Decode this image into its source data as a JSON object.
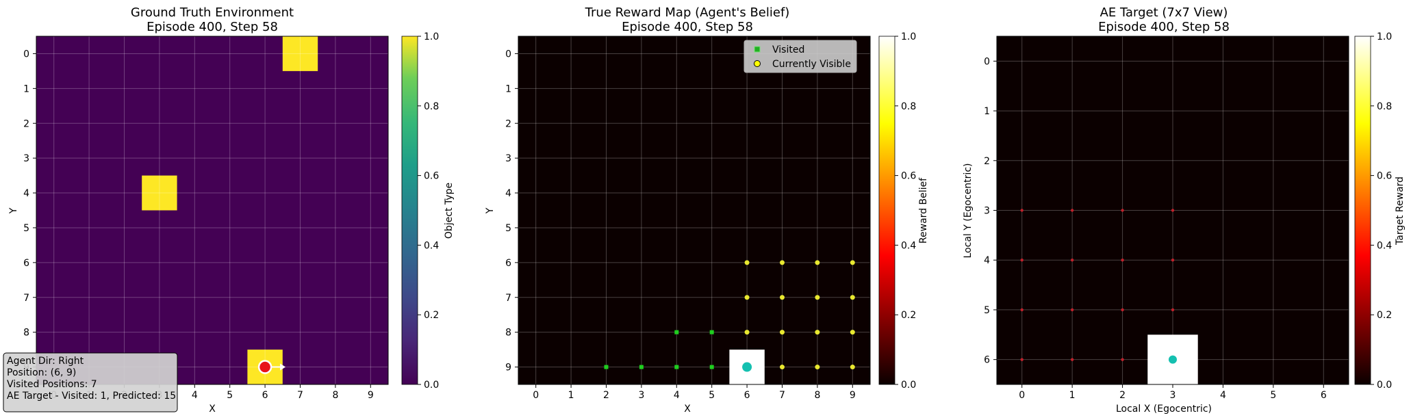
{
  "panels": [
    {
      "title_line1": "Ground Truth Environment",
      "title_line2": "Episode 400, Step 58",
      "xlabel": "X",
      "ylabel": "Y",
      "colorbar_label": "Object Type",
      "colormap": "viridis",
      "x_ticks": [
        "0",
        "1",
        "2",
        "3",
        "4",
        "5",
        "6",
        "7",
        "8",
        "9"
      ],
      "y_ticks": [
        "0",
        "1",
        "2",
        "3",
        "4",
        "5",
        "6",
        "7",
        "8",
        "9"
      ],
      "colorbar_ticks": [
        "0.0",
        "0.2",
        "0.4",
        "0.6",
        "0.8",
        "1.0"
      ]
    },
    {
      "title_line1": "True Reward Map (Agent's Belief)",
      "title_line2": "Episode 400, Step 58",
      "xlabel": "X",
      "ylabel": "Y",
      "colorbar_label": "Reward Belief",
      "colormap": "hot",
      "x_ticks": [
        "0",
        "1",
        "2",
        "3",
        "4",
        "5",
        "6",
        "7",
        "8",
        "9"
      ],
      "y_ticks": [
        "0",
        "1",
        "2",
        "3",
        "4",
        "5",
        "6",
        "7",
        "8",
        "9"
      ],
      "colorbar_ticks": [
        "0.0",
        "0.2",
        "0.4",
        "0.6",
        "0.8",
        "1.0"
      ],
      "legend": [
        "Visited",
        "Currently Visible"
      ]
    },
    {
      "title_line1": "AE Target (7x7 View)",
      "title_line2": "Episode 400, Step 58",
      "xlabel": "Local X (Egocentric)",
      "ylabel": "Local Y (Egocentric)",
      "colorbar_label": "Target Reward",
      "colormap": "hot",
      "x_ticks": [
        "0",
        "1",
        "2",
        "3",
        "4",
        "5",
        "6"
      ],
      "y_ticks": [
        "0",
        "1",
        "2",
        "3",
        "4",
        "5",
        "6"
      ],
      "colorbar_ticks": [
        "0.0",
        "0.2",
        "0.4",
        "0.6",
        "0.8",
        "1.0"
      ]
    }
  ],
  "info_box": {
    "line1": "Agent Dir: Right",
    "line2": "Position: (6, 9)",
    "line3": "Visited Positions: 7",
    "line4": "AE Target - Visited: 1, Predicted: 15"
  },
  "chart_data": [
    {
      "type": "heatmap",
      "grid_size": [
        10,
        10
      ],
      "cells": [
        {
          "x": 7,
          "y": 0,
          "value": 1.0
        },
        {
          "x": 3,
          "y": 4,
          "value": 1.0
        },
        {
          "x": 6,
          "y": 9,
          "value": 1.0
        }
      ],
      "background_value": 0.0,
      "agent": {
        "x": 6,
        "y": 9,
        "dir": "Right"
      },
      "vmin": 0,
      "vmax": 1
    },
    {
      "type": "heatmap",
      "grid_size": [
        10,
        10
      ],
      "cells": [
        {
          "x": 6,
          "y": 9,
          "value": 1.0
        }
      ],
      "background_value": 0.0,
      "agent": {
        "x": 6,
        "y": 9
      },
      "visited": [
        [
          2,
          9
        ],
        [
          3,
          9
        ],
        [
          4,
          9
        ],
        [
          5,
          9
        ],
        [
          4,
          8
        ],
        [
          5,
          8
        ],
        [
          6,
          9
        ]
      ],
      "visible": [
        [
          6,
          6
        ],
        [
          7,
          6
        ],
        [
          8,
          6
        ],
        [
          9,
          6
        ],
        [
          6,
          7
        ],
        [
          7,
          7
        ],
        [
          8,
          7
        ],
        [
          9,
          7
        ],
        [
          6,
          8
        ],
        [
          7,
          8
        ],
        [
          8,
          8
        ],
        [
          9,
          8
        ],
        [
          7,
          9
        ],
        [
          8,
          9
        ],
        [
          9,
          9
        ]
      ],
      "vmin": 0,
      "vmax": 1
    },
    {
      "type": "heatmap",
      "grid_size": [
        7,
        7
      ],
      "cells": [
        {
          "x": 3,
          "y": 6,
          "value": 1.0
        }
      ],
      "background_value": 0.0,
      "agent": {
        "x": 3,
        "y": 6
      },
      "predicted": [
        [
          0,
          3
        ],
        [
          1,
          3
        ],
        [
          2,
          3
        ],
        [
          3,
          3
        ],
        [
          0,
          4
        ],
        [
          1,
          4
        ],
        [
          2,
          4
        ],
        [
          3,
          4
        ],
        [
          0,
          5
        ],
        [
          1,
          5
        ],
        [
          2,
          5
        ],
        [
          3,
          5
        ],
        [
          0,
          6
        ],
        [
          1,
          6
        ],
        [
          2,
          6
        ]
      ],
      "vmin": 0,
      "vmax": 1
    }
  ]
}
